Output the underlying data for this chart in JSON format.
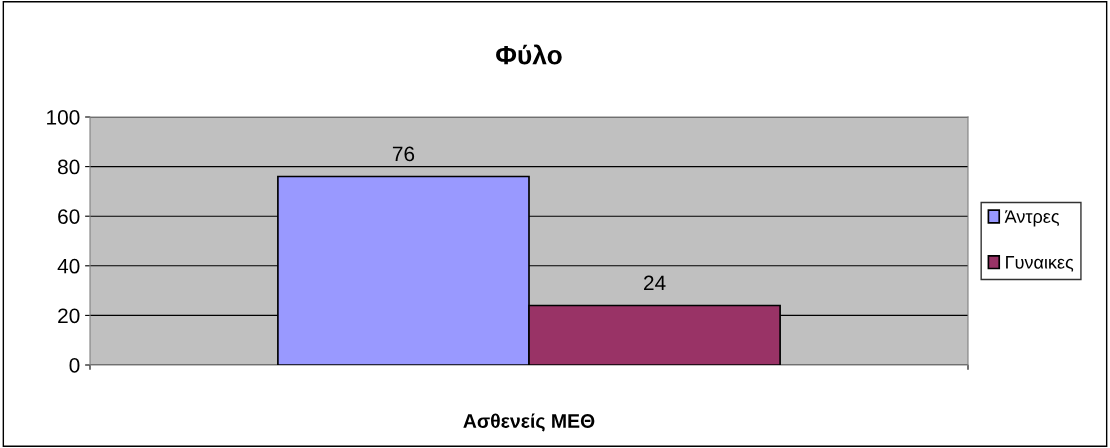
{
  "chart_data": {
    "type": "bar",
    "title": "Φύλο",
    "xlabel": "Ασθενείς ΜΕΘ",
    "categories": [
      null
    ],
    "series": [
      {
        "name": "Άντρες",
        "color": "#9999ff",
        "values": [
          76
        ]
      },
      {
        "name": "Γυναικες",
        "color": "#993366",
        "values": [
          24
        ]
      }
    ],
    "ylim": [
      0,
      100
    ],
    "yticks": [
      0,
      20,
      40,
      60,
      80,
      100
    ],
    "grid": "y",
    "legend": "right",
    "data_labels": true
  }
}
